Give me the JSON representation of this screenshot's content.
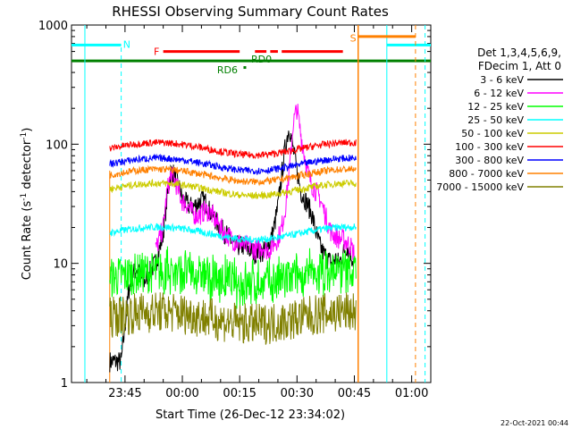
{
  "chart_data": {
    "type": "line",
    "title": "RHESSI Observing Summary Count Rates",
    "xlabel": "Start Time (26-Dec-12 23:34:02)",
    "ylabel_main": "Count Rate (s",
    "ylabel_sup1": "-1",
    "ylabel_mid": " detector",
    "ylabel_sup2": "-1",
    "ylabel_end": ")",
    "yscale": "log",
    "ylim": [
      1,
      1000
    ],
    "xlim_minutes": [
      -14,
      80
    ],
    "y_ticks": [
      {
        "value": 1,
        "label": "1"
      },
      {
        "value": 10,
        "label": "10"
      },
      {
        "value": 100,
        "label": "100"
      },
      {
        "value": 1000,
        "label": "1000"
      }
    ],
    "x_ticks": [
      {
        "minute": 0,
        "label": "23:45"
      },
      {
        "minute": 15,
        "label": "00:00"
      },
      {
        "minute": 30,
        "label": "00:15"
      },
      {
        "minute": 45,
        "label": "00:30"
      },
      {
        "minute": 60,
        "label": "00:45"
      },
      {
        "minute": 75,
        "label": "01:00"
      }
    ],
    "legend_header": [
      "Det 1,3,4,5,6,9,",
      "FDecim 1, Att 0"
    ],
    "legend_position": "right",
    "data_start_minute": -4,
    "data_end_minute": 60.5,
    "series": [
      {
        "name": "3 - 6 keV",
        "color": "#000000",
        "x": [
          -4,
          -1,
          0,
          1,
          2,
          3,
          4,
          5,
          6,
          7,
          8,
          9,
          10,
          11,
          12,
          13,
          14,
          15,
          16,
          17,
          18,
          19,
          20,
          21,
          22,
          23,
          24,
          25,
          26,
          27,
          28,
          29,
          30,
          31,
          32,
          33,
          34,
          35,
          36,
          37,
          38,
          39,
          40,
          41,
          42,
          43,
          44,
          45,
          46,
          47,
          48,
          49,
          50,
          51,
          52,
          53,
          54,
          55,
          56,
          57,
          58,
          59,
          60
        ],
        "values": [
          1.5,
          1.5,
          3,
          6,
          8,
          9,
          8,
          7,
          8,
          9,
          10,
          13,
          18,
          35,
          60,
          55,
          45,
          35,
          32,
          30,
          30,
          32,
          34,
          33,
          28,
          25,
          22,
          20,
          18,
          17,
          15,
          14,
          14,
          14,
          13,
          13,
          12,
          13,
          12,
          14,
          15,
          20,
          30,
          55,
          100,
          140,
          90,
          60,
          40,
          35,
          30,
          25,
          18,
          14,
          12,
          11,
          10,
          11,
          10,
          12,
          14,
          12,
          10
        ]
      },
      {
        "name": "6 - 12 keV",
        "color": "#ff00ff",
        "x": [
          -4,
          0,
          4,
          8,
          10,
          11,
          12,
          13,
          14,
          15,
          16,
          17,
          18,
          19,
          20,
          21,
          22,
          23,
          24,
          25,
          26,
          27,
          28,
          29,
          30,
          31,
          32,
          33,
          34,
          35,
          36,
          37,
          38,
          39,
          40,
          41,
          42,
          43,
          44,
          45,
          46,
          47,
          48,
          49,
          50,
          51,
          52,
          53,
          54,
          55,
          56,
          57,
          58,
          59,
          60
        ],
        "values": [
          null,
          null,
          null,
          13,
          20,
          40,
          55,
          50,
          40,
          33,
          32,
          28,
          26,
          25,
          26,
          28,
          27,
          25,
          22,
          20,
          18,
          17,
          16,
          15,
          15,
          14,
          14,
          14,
          13,
          13,
          14,
          13,
          13,
          15,
          16,
          20,
          30,
          60,
          150,
          200,
          120,
          80,
          55,
          45,
          40,
          35,
          28,
          22,
          18,
          17,
          16,
          16,
          15,
          14,
          12
        ]
      },
      {
        "name": "12 - 25 keV",
        "color": "#00ff00",
        "values_flat": 7.5
      },
      {
        "name": "25 - 50 keV",
        "color": "#00ffff",
        "values_flat": 18
      },
      {
        "name": "50 - 100 keV",
        "color": "#cccc00",
        "values_flat": 42
      },
      {
        "name": "100 - 300 keV",
        "color": "#ff0000",
        "values_flat": 92
      },
      {
        "name": "300 - 800 keV",
        "color": "#0000ff",
        "values_flat": 68
      },
      {
        "name": "800 - 7000 keV",
        "color": "#ff8000",
        "values_flat": 55
      },
      {
        "name": "7000 - 15000 keV",
        "color": "#808000",
        "values_flat": 3.5
      }
    ],
    "annotations": {
      "N": {
        "label": "N",
        "color": "#00ffff"
      },
      "F": {
        "label": "F",
        "color": "#ff0000"
      },
      "S": {
        "label": "S",
        "color": "#ff8000"
      },
      "RD0": {
        "label": "RD0",
        "color": "#008000"
      },
      "RD6": {
        "label": "RD6",
        "color": "#008000"
      }
    },
    "footer_date": "22-Oct-2021 00:44"
  }
}
